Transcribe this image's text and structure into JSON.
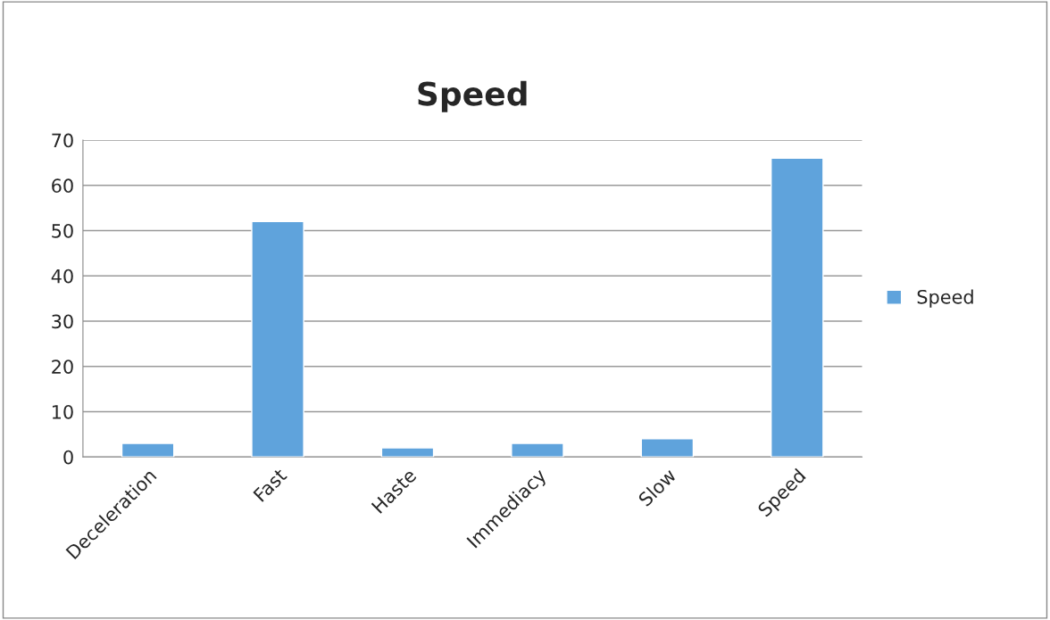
{
  "chart_data": {
    "type": "bar",
    "title": "Speed",
    "categories": [
      "Deceleration",
      "Fast",
      "Haste",
      "Immediacy",
      "Slow",
      "Speed"
    ],
    "series": [
      {
        "name": "Speed",
        "color": "#5fa3dc",
        "values": [
          3,
          52,
          2,
          3,
          4,
          66
        ]
      }
    ],
    "ylim": [
      0,
      70
    ],
    "yticks": [
      0,
      10,
      20,
      30,
      40,
      50,
      60,
      70
    ],
    "grid": "y",
    "legend": "right"
  }
}
